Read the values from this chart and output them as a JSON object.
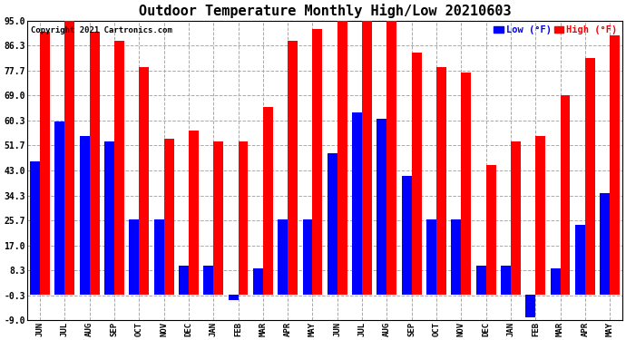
{
  "title": "Outdoor Temperature Monthly High/Low 20210603",
  "copyright": "Copyright 2021 Cartronics.com",
  "legend_low": "Low (°F)",
  "legend_high": "High (°F)",
  "months": [
    "JUN",
    "JUL",
    "AUG",
    "SEP",
    "OCT",
    "NOV",
    "DEC",
    "JAN",
    "FEB",
    "MAR",
    "APR",
    "MAY",
    "JUN",
    "JUL",
    "AUG",
    "SEP",
    "OCT",
    "NOV",
    "DEC",
    "JAN",
    "FEB",
    "MAR",
    "APR",
    "MAY"
  ],
  "high": [
    91,
    95,
    91,
    88,
    79,
    54,
    57,
    53,
    53,
    65,
    88,
    92,
    95,
    95,
    95,
    84,
    79,
    77,
    45,
    53,
    55,
    69,
    82,
    90
  ],
  "low": [
    46,
    60,
    55,
    53,
    26,
    26,
    10,
    10,
    -2,
    9,
    26,
    26,
    49,
    63,
    61,
    41,
    26,
    26,
    10,
    10,
    -8,
    9,
    24,
    35
  ],
  "ylim": [
    -9.0,
    95.0
  ],
  "yticks": [
    -9.0,
    -0.3,
    8.3,
    17.0,
    25.7,
    34.3,
    43.0,
    51.7,
    60.3,
    69.0,
    77.7,
    86.3,
    95.0
  ],
  "high_color": "#ff0000",
  "low_color": "#0000ff",
  "grid_color": "#aaaaaa",
  "bg_color": "#ffffff",
  "title_fontsize": 11,
  "bar_width": 0.4
}
